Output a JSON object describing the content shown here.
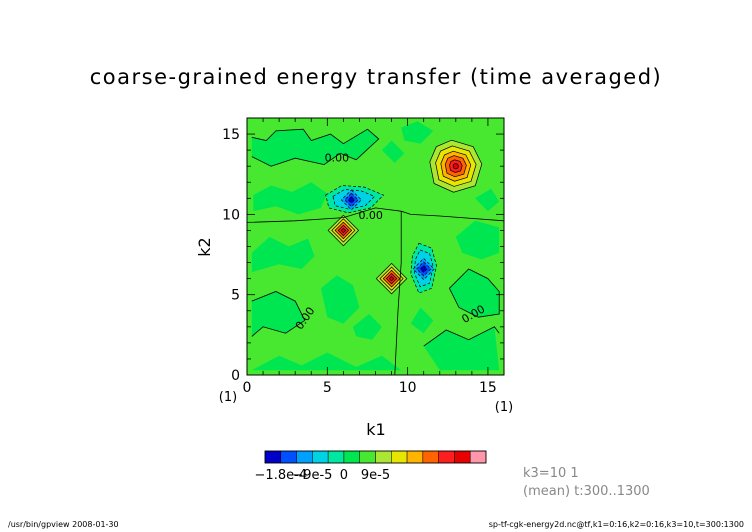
{
  "chart_data": {
    "type": "heatmap",
    "title": "coarse-grained energy transfer (time averaged)",
    "xlabel": "k1",
    "ylabel": "k2",
    "xlim": [
      0,
      16
    ],
    "ylim": [
      0,
      16
    ],
    "x_ticks": [
      "0",
      "5",
      "10",
      "15"
    ],
    "y_ticks": [
      "0",
      "5",
      "10",
      "15"
    ],
    "x_unit": "(1)",
    "y_unit": "(1)",
    "contour_labels": [
      "0.00",
      "0.00",
      "0.00",
      "0.00"
    ],
    "features": [
      {
        "k1": 13,
        "k2": 13,
        "value": 0.00016
      },
      {
        "k1": 6,
        "k2": 11,
        "value": -0.00018
      },
      {
        "k1": 11,
        "k2": 6,
        "value": -0.00018
      },
      {
        "k1": 6,
        "k2": 9,
        "value": 0.00014
      },
      {
        "k1": 9,
        "k2": 6,
        "value": 0.00014
      }
    ],
    "colorbar": {
      "colors": [
        "#0000c8",
        "#0050ff",
        "#00a0ff",
        "#00d2e6",
        "#00e8a0",
        "#00e650",
        "#48e830",
        "#aae632",
        "#e6e600",
        "#ffb400",
        "#ff6400",
        "#ff1e1e",
        "#e60000",
        "#ff96aa"
      ],
      "tick_labels": [
        "−1.8e-4",
        "−9e-5",
        "0",
        "9e-5"
      ]
    },
    "annotation_lines": [
      "k3=10  1",
      "(mean) t:300..1300"
    ],
    "footer_left": "/usr/bin/gpview   2008-01-30",
    "footer_right": "sp-tf-cgk-energy2d.nc@tf,k1=0:16,k2=0:16,k3=10,t=300:1300"
  },
  "colors": {
    "background_level": "#48e830",
    "zero_band": "#00e650"
  }
}
